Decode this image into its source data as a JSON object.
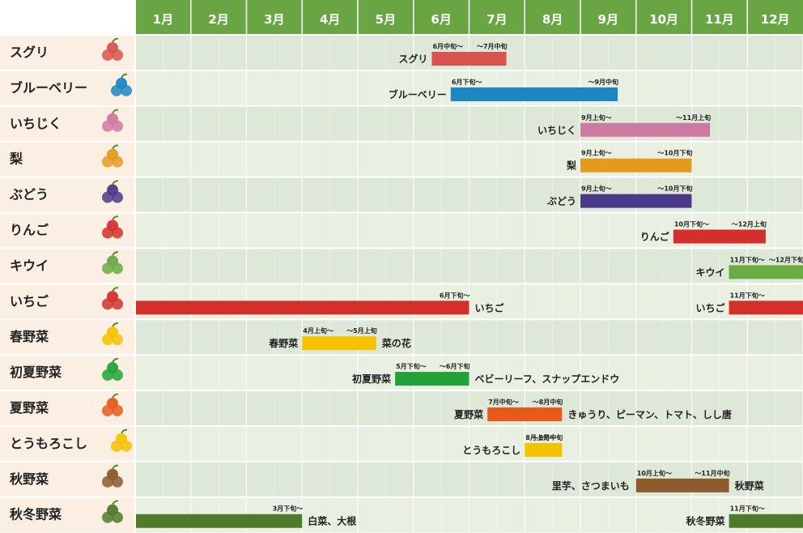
{
  "chart_data": {
    "type": "gantt",
    "months": [
      "1月",
      "2月",
      "3月",
      "4月",
      "5月",
      "6月",
      "7月",
      "8月",
      "9月",
      "10月",
      "11月",
      "12月"
    ],
    "rows": [
      {
        "name": "スグリ",
        "icon": "red-currant-icon",
        "bars": [
          {
            "start": 5.33,
            "end": 6.67,
            "color": "#d9534f",
            "label": "スグリ",
            "label_side": "left",
            "start_text": "6月中旬〜",
            "end_text": "〜7月中旬"
          }
        ]
      },
      {
        "name": "ブルーベリー",
        "icon": "blueberry-icon",
        "bars": [
          {
            "start": 5.67,
            "end": 8.67,
            "color": "#1f86c4",
            "label": "ブルーベリー",
            "label_side": "left",
            "start_text": "6月下旬〜",
            "end_text": "〜9月中旬"
          }
        ]
      },
      {
        "name": "いちじく",
        "icon": "fig-icon",
        "bars": [
          {
            "start": 8.0,
            "end": 10.33,
            "color": "#cc7aa1",
            "label": "いちじく",
            "label_side": "left",
            "start_text": "9月上旬〜",
            "end_text": "〜11月上旬"
          }
        ]
      },
      {
        "name": "梨",
        "icon": "pear-icon",
        "bars": [
          {
            "start": 8.0,
            "end": 10.0,
            "color": "#e39b1f",
            "label": "梨",
            "label_side": "left",
            "start_text": "9月上旬〜",
            "end_text": "〜10月下旬"
          }
        ]
      },
      {
        "name": "ぶどう",
        "icon": "grape-icon",
        "bars": [
          {
            "start": 8.0,
            "end": 10.0,
            "color": "#4b3a8a",
            "label": "ぶどう",
            "label_side": "left",
            "start_text": "9月上旬〜",
            "end_text": "〜10月下旬"
          }
        ]
      },
      {
        "name": "りんご",
        "icon": "apple-icon",
        "bars": [
          {
            "start": 9.67,
            "end": 11.33,
            "color": "#d4302b",
            "label": "りんご",
            "label_side": "left",
            "start_text": "10月下旬〜",
            "end_text": "〜12月上旬"
          }
        ]
      },
      {
        "name": "キウイ",
        "icon": "kiwi-icon",
        "bars": [
          {
            "start": 10.67,
            "end": 12.0,
            "color": "#6aab43",
            "label": "キウイ",
            "label_side": "left",
            "start_text": "11月下旬〜",
            "end_text": "〜12月下旬"
          }
        ]
      },
      {
        "name": "いちご",
        "icon": "strawberry-icon",
        "bars": [
          {
            "start": 0.0,
            "end": 6.0,
            "color": "#d4302b",
            "label": "いちご",
            "label_side": "right",
            "start_text": "",
            "end_text": "6月下旬〜"
          },
          {
            "start": 10.67,
            "end": 12.0,
            "color": "#d4302b",
            "label": "いちご",
            "label_side": "left",
            "start_text": "11月下旬〜",
            "end_text": ""
          }
        ]
      },
      {
        "name": "春野菜",
        "icon": "canola-flower-icon",
        "bars": [
          {
            "start": 3.0,
            "end": 4.33,
            "color": "#f5c200",
            "label": "春野菜",
            "label_side": "left",
            "extra": "菜の花",
            "start_text": "4月上旬〜",
            "end_text": "〜5月上旬"
          }
        ]
      },
      {
        "name": "初夏野菜",
        "icon": "snap-pea-icon",
        "bars": [
          {
            "start": 4.67,
            "end": 6.0,
            "color": "#22a33a",
            "label": "初夏野菜",
            "label_side": "left",
            "extra": "ベビーリーフ、スナップエンドウ",
            "start_text": "5月下旬〜",
            "end_text": "〜6月下旬"
          }
        ]
      },
      {
        "name": "夏野菜",
        "icon": "summer-vegetables-icon",
        "bars": [
          {
            "start": 6.33,
            "end": 7.67,
            "color": "#e85a1b",
            "label": "夏野菜",
            "label_side": "left",
            "extra": "きゅうり、ピーマン、トマト、しし唐",
            "start_text": "7月中旬〜",
            "end_text": "〜8月中旬"
          }
        ]
      },
      {
        "name": "とうもろこし",
        "icon": "corn-icon",
        "bars": [
          {
            "start": 7.0,
            "end": 7.67,
            "color": "#f5c200",
            "label": "とうもろこし",
            "label_side": "left",
            "start_text": "8月上旬〜",
            "end_text": "〜8月中旬"
          }
        ]
      },
      {
        "name": "秋野菜",
        "icon": "sweet-potato-icon",
        "bars": [
          {
            "start": 9.0,
            "end": 10.67,
            "color": "#8c5a2b",
            "label": "秋野菜",
            "label_side": "right",
            "extra_left": "里芋、さつまいも",
            "start_text": "10月上旬〜",
            "end_text": "〜11月中旬"
          }
        ]
      },
      {
        "name": "秋冬野菜",
        "icon": "cabbage-radish-icon",
        "bars": [
          {
            "start": 0.0,
            "end": 3.0,
            "color": "#4f7a2b",
            "label": "白菜、大根",
            "label_side": "right",
            "start_text": "",
            "end_text": "3月下旬〜"
          },
          {
            "start": 10.67,
            "end": 12.0,
            "color": "#4f7a2b",
            "label": "秋冬野菜",
            "label_side": "left",
            "start_text": "11月下旬〜",
            "end_text": ""
          }
        ]
      }
    ]
  },
  "colors": {
    "header_bg": "#6aa544",
    "header_text": "#ffffff",
    "sidebar_bg": "#fbefe3",
    "row_even": "#dde8d8",
    "row_odd": "#e9f0e2",
    "grid_line": "#ffffff"
  }
}
